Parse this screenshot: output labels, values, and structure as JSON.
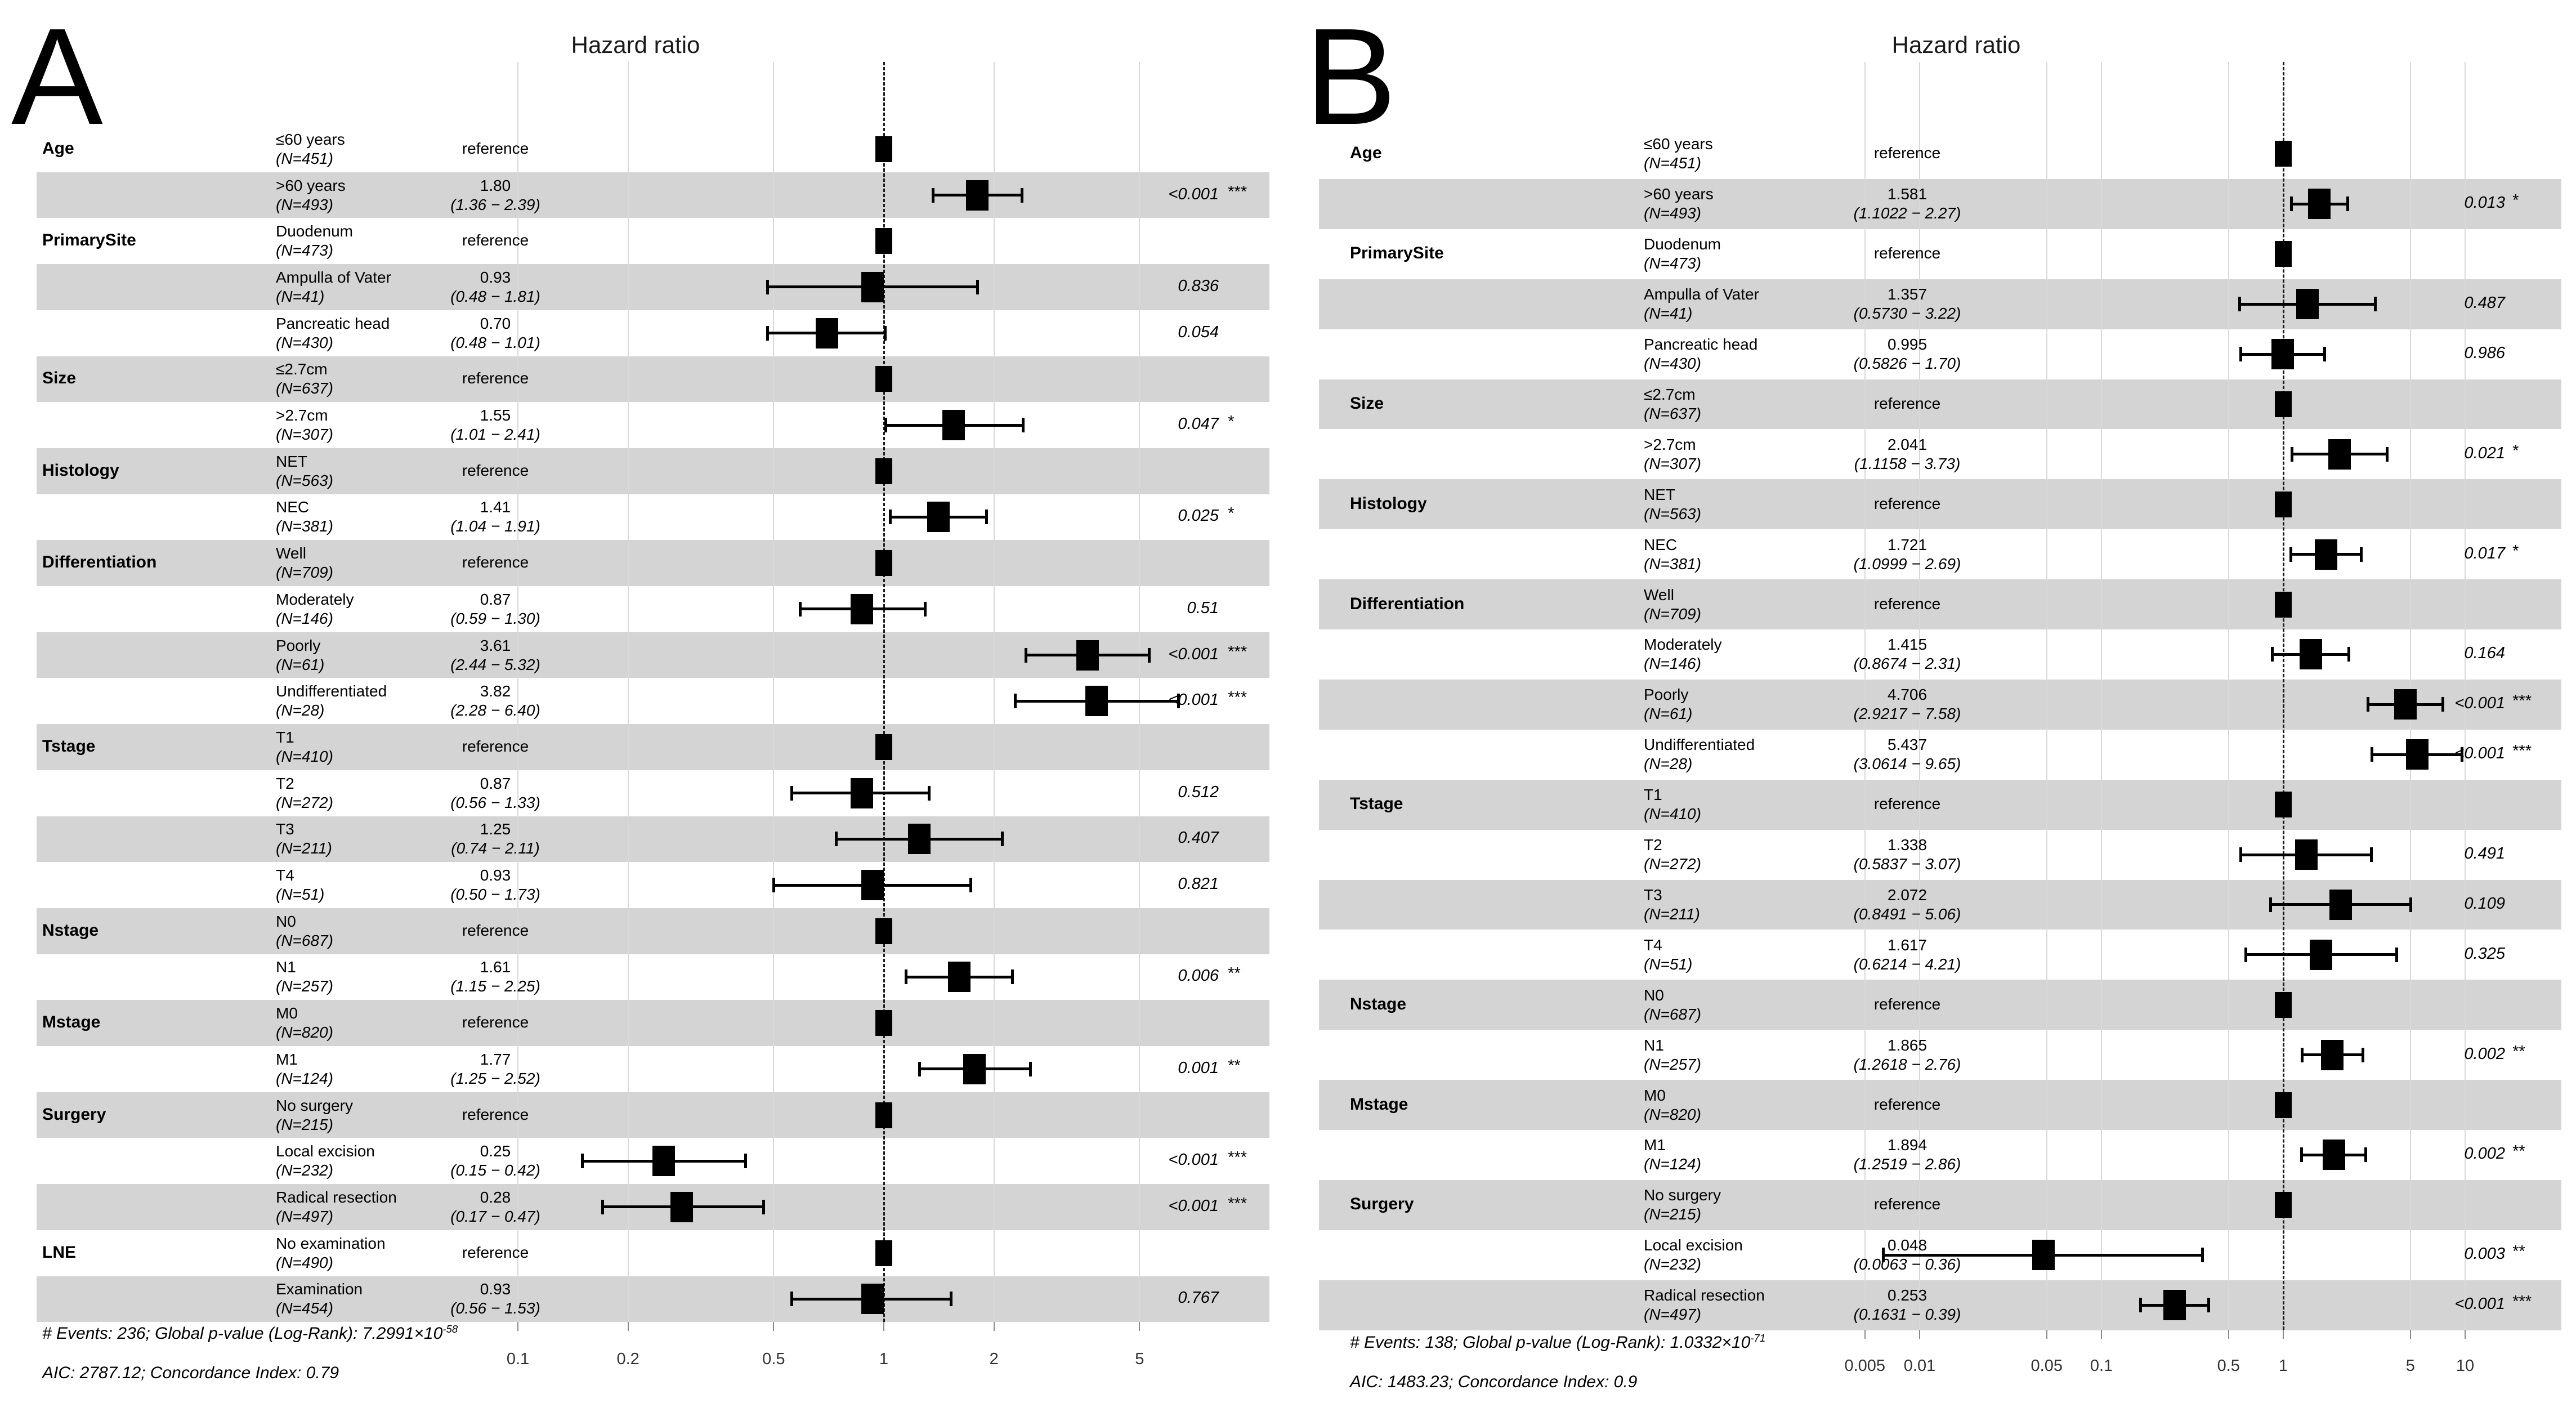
{
  "colors": {
    "row_band": "#d4d4d4",
    "grid_line": "#d9d9d9",
    "marker": "#000000",
    "reference_line": "#1a1a1a"
  },
  "chart_data": [
    {
      "type": "scatter",
      "variant": "forest-plot",
      "panel_label": "A",
      "title": "Hazard ratio",
      "xscale": "log",
      "xlabel": "",
      "xtick_labels": [
        "0.1",
        "0.2",
        "0.5",
        "1",
        "2",
        "5"
      ],
      "xtick_values": [
        0.1,
        0.2,
        0.5,
        1,
        2,
        5
      ],
      "xlim": [
        0.07,
        8
      ],
      "grid": "on",
      "footnote1": "# Events: 236; Global p-value (Log-Rank): 7.2991×10",
      "footnote1_sup": "-58",
      "footnote2": "AIC: 2787.12; Concordance Index: 0.79",
      "rows": [
        {
          "variable": "Age",
          "level": "≤60 years",
          "n": "(N=451)",
          "est": "reference",
          "reference": true
        },
        {
          "variable": "",
          "level": ">60 years",
          "n": "(N=493)",
          "est": "1.80",
          "ci": "(1.36 − 2.39)",
          "hr": 1.8,
          "lo": 1.36,
          "hi": 2.39,
          "p": "<0.001",
          "stars": "***"
        },
        {
          "variable": "PrimarySite",
          "level": "Duodenum",
          "n": "(N=473)",
          "est": "reference",
          "reference": true
        },
        {
          "variable": "",
          "level": "Ampulla of Vater",
          "n": "(N=41)",
          "est": "0.93",
          "ci": "(0.48 − 1.81)",
          "hr": 0.93,
          "lo": 0.48,
          "hi": 1.81,
          "p": "0.836",
          "stars": ""
        },
        {
          "variable": "",
          "level": "Pancreatic head",
          "n": "(N=430)",
          "est": "0.70",
          "ci": "(0.48 − 1.01)",
          "hr": 0.7,
          "lo": 0.48,
          "hi": 1.01,
          "p": "0.054",
          "stars": ""
        },
        {
          "variable": "Size",
          "level": "≤2.7cm",
          "n": "(N=637)",
          "est": "reference",
          "reference": true
        },
        {
          "variable": "",
          "level": ">2.7cm",
          "n": "(N=307)",
          "est": "1.55",
          "ci": "(1.01 − 2.41)",
          "hr": 1.55,
          "lo": 1.01,
          "hi": 2.41,
          "p": "0.047",
          "stars": "*"
        },
        {
          "variable": "Histology",
          "level": "NET",
          "n": "(N=563)",
          "est": "reference",
          "reference": true
        },
        {
          "variable": "",
          "level": "NEC",
          "n": "(N=381)",
          "est": "1.41",
          "ci": "(1.04 − 1.91)",
          "hr": 1.41,
          "lo": 1.04,
          "hi": 1.91,
          "p": "0.025",
          "stars": "*"
        },
        {
          "variable": "Differentiation",
          "level": "Well",
          "n": "(N=709)",
          "est": "reference",
          "reference": true
        },
        {
          "variable": "",
          "level": "Moderately",
          "n": "(N=146)",
          "est": "0.87",
          "ci": "(0.59 − 1.30)",
          "hr": 0.87,
          "lo": 0.59,
          "hi": 1.3,
          "p": "0.51",
          "stars": ""
        },
        {
          "variable": "",
          "level": "Poorly",
          "n": "(N=61)",
          "est": "3.61",
          "ci": "(2.44 − 5.32)",
          "hr": 3.61,
          "lo": 2.44,
          "hi": 5.32,
          "p": "<0.001",
          "stars": "***"
        },
        {
          "variable": "",
          "level": "Undifferentiated",
          "n": "(N=28)",
          "est": "3.82",
          "ci": "(2.28 − 6.40)",
          "hr": 3.82,
          "lo": 2.28,
          "hi": 6.4,
          "p": "<0.001",
          "stars": "***"
        },
        {
          "variable": "Tstage",
          "level": "T1",
          "n": "(N=410)",
          "est": "reference",
          "reference": true
        },
        {
          "variable": "",
          "level": "T2",
          "n": "(N=272)",
          "est": "0.87",
          "ci": "(0.56 − 1.33)",
          "hr": 0.87,
          "lo": 0.56,
          "hi": 1.33,
          "p": "0.512",
          "stars": ""
        },
        {
          "variable": "",
          "level": "T3",
          "n": "(N=211)",
          "est": "1.25",
          "ci": "(0.74 − 2.11)",
          "hr": 1.25,
          "lo": 0.74,
          "hi": 2.11,
          "p": "0.407",
          "stars": ""
        },
        {
          "variable": "",
          "level": "T4",
          "n": "(N=51)",
          "est": "0.93",
          "ci": "(0.50 − 1.73)",
          "hr": 0.93,
          "lo": 0.5,
          "hi": 1.73,
          "p": "0.821",
          "stars": ""
        },
        {
          "variable": "Nstage",
          "level": "N0",
          "n": "(N=687)",
          "est": "reference",
          "reference": true
        },
        {
          "variable": "",
          "level": "N1",
          "n": "(N=257)",
          "est": "1.61",
          "ci": "(1.15 − 2.25)",
          "hr": 1.61,
          "lo": 1.15,
          "hi": 2.25,
          "p": "0.006",
          "stars": "**"
        },
        {
          "variable": "Mstage",
          "level": "M0",
          "n": "(N=820)",
          "est": "reference",
          "reference": true
        },
        {
          "variable": "",
          "level": "M1",
          "n": "(N=124)",
          "est": "1.77",
          "ci": "(1.25 − 2.52)",
          "hr": 1.77,
          "lo": 1.25,
          "hi": 2.52,
          "p": "0.001",
          "stars": "**"
        },
        {
          "variable": "Surgery",
          "level": "No surgery",
          "n": "(N=215)",
          "est": "reference",
          "reference": true
        },
        {
          "variable": "",
          "level": "Local excision",
          "n": "(N=232)",
          "est": "0.25",
          "ci": "(0.15 − 0.42)",
          "hr": 0.25,
          "lo": 0.15,
          "hi": 0.42,
          "p": "<0.001",
          "stars": "***"
        },
        {
          "variable": "",
          "level": "Radical resection",
          "n": "(N=497)",
          "est": "0.28",
          "ci": "(0.17 − 0.47)",
          "hr": 0.28,
          "lo": 0.17,
          "hi": 0.47,
          "p": "<0.001",
          "stars": "***"
        },
        {
          "variable": "LNE",
          "level": "No examination",
          "n": "(N=490)",
          "est": "reference",
          "reference": true
        },
        {
          "variable": "",
          "level": "Examination",
          "n": "(N=454)",
          "est": "0.93",
          "ci": "(0.56 − 1.53)",
          "hr": 0.93,
          "lo": 0.56,
          "hi": 1.53,
          "p": "0.767",
          "stars": ""
        }
      ]
    },
    {
      "type": "scatter",
      "variant": "forest-plot",
      "panel_label": "B",
      "title": "Hazard ratio",
      "xscale": "log",
      "xlabel": "",
      "xtick_labels": [
        "0.005",
        "0.01",
        "0.05",
        "0.1",
        "0.5",
        "1",
        "5",
        "10"
      ],
      "xtick_values": [
        0.005,
        0.01,
        0.05,
        0.1,
        0.5,
        1,
        5,
        10
      ],
      "xlim": [
        0.004,
        12
      ],
      "grid": "on",
      "footnote1": "# Events: 138; Global p-value (Log-Rank): 1.0332×10",
      "footnote1_sup": "-71",
      "footnote2": "AIC: 1483.23; Concordance Index: 0.9",
      "rows": [
        {
          "variable": "Age",
          "level": "≤60 years",
          "n": "(N=451)",
          "est": "reference",
          "reference": true
        },
        {
          "variable": "",
          "level": ">60 years",
          "n": "(N=493)",
          "est": "1.581",
          "ci": "(1.1022 − 2.27)",
          "hr": 1.581,
          "lo": 1.1022,
          "hi": 2.27,
          "p": "0.013",
          "stars": "*"
        },
        {
          "variable": "PrimarySite",
          "level": "Duodenum",
          "n": "(N=473)",
          "est": "reference",
          "reference": true
        },
        {
          "variable": "",
          "level": "Ampulla of Vater",
          "n": "(N=41)",
          "est": "1.357",
          "ci": "(0.5730 − 3.22)",
          "hr": 1.357,
          "lo": 0.573,
          "hi": 3.22,
          "p": "0.487",
          "stars": ""
        },
        {
          "variable": "",
          "level": "Pancreatic head",
          "n": "(N=430)",
          "est": "0.995",
          "ci": "(0.5826 − 1.70)",
          "hr": 0.995,
          "lo": 0.5826,
          "hi": 1.7,
          "p": "0.986",
          "stars": ""
        },
        {
          "variable": "Size",
          "level": "≤2.7cm",
          "n": "(N=637)",
          "est": "reference",
          "reference": true
        },
        {
          "variable": "",
          "level": ">2.7cm",
          "n": "(N=307)",
          "est": "2.041",
          "ci": "(1.1158 − 3.73)",
          "hr": 2.041,
          "lo": 1.1158,
          "hi": 3.73,
          "p": "0.021",
          "stars": "*"
        },
        {
          "variable": "Histology",
          "level": "NET",
          "n": "(N=563)",
          "est": "reference",
          "reference": true
        },
        {
          "variable": "",
          "level": "NEC",
          "n": "(N=381)",
          "est": "1.721",
          "ci": "(1.0999 − 2.69)",
          "hr": 1.721,
          "lo": 1.0999,
          "hi": 2.69,
          "p": "0.017",
          "stars": "*"
        },
        {
          "variable": "Differentiation",
          "level": "Well",
          "n": "(N=709)",
          "est": "reference",
          "reference": true
        },
        {
          "variable": "",
          "level": "Moderately",
          "n": "(N=146)",
          "est": "1.415",
          "ci": "(0.8674 − 2.31)",
          "hr": 1.415,
          "lo": 0.8674,
          "hi": 2.31,
          "p": "0.164",
          "stars": ""
        },
        {
          "variable": "",
          "level": "Poorly",
          "n": "(N=61)",
          "est": "4.706",
          "ci": "(2.9217 − 7.58)",
          "hr": 4.706,
          "lo": 2.9217,
          "hi": 7.58,
          "p": "<0.001",
          "stars": "***"
        },
        {
          "variable": "",
          "level": "Undifferentiated",
          "n": "(N=28)",
          "est": "5.437",
          "ci": "(3.0614 − 9.65)",
          "hr": 5.437,
          "lo": 3.0614,
          "hi": 9.65,
          "p": "<0.001",
          "stars": "***"
        },
        {
          "variable": "Tstage",
          "level": "T1",
          "n": "(N=410)",
          "est": "reference",
          "reference": true
        },
        {
          "variable": "",
          "level": "T2",
          "n": "(N=272)",
          "est": "1.338",
          "ci": "(0.5837 − 3.07)",
          "hr": 1.338,
          "lo": 0.5837,
          "hi": 3.07,
          "p": "0.491",
          "stars": ""
        },
        {
          "variable": "",
          "level": "T3",
          "n": "(N=211)",
          "est": "2.072",
          "ci": "(0.8491 − 5.06)",
          "hr": 2.072,
          "lo": 0.8491,
          "hi": 5.06,
          "p": "0.109",
          "stars": ""
        },
        {
          "variable": "",
          "level": "T4",
          "n": "(N=51)",
          "est": "1.617",
          "ci": "(0.6214 − 4.21)",
          "hr": 1.617,
          "lo": 0.6214,
          "hi": 4.21,
          "p": "0.325",
          "stars": ""
        },
        {
          "variable": "Nstage",
          "level": "N0",
          "n": "(N=687)",
          "est": "reference",
          "reference": true
        },
        {
          "variable": "",
          "level": "N1",
          "n": "(N=257)",
          "est": "1.865",
          "ci": "(1.2618 − 2.76)",
          "hr": 1.865,
          "lo": 1.2618,
          "hi": 2.76,
          "p": "0.002",
          "stars": "**"
        },
        {
          "variable": "Mstage",
          "level": "M0",
          "n": "(N=820)",
          "est": "reference",
          "reference": true
        },
        {
          "variable": "",
          "level": "M1",
          "n": "(N=124)",
          "est": "1.894",
          "ci": "(1.2519 − 2.86)",
          "hr": 1.894,
          "lo": 1.2519,
          "hi": 2.86,
          "p": "0.002",
          "stars": "**"
        },
        {
          "variable": "Surgery",
          "level": "No surgery",
          "n": "(N=215)",
          "est": "reference",
          "reference": true
        },
        {
          "variable": "",
          "level": "Local excision",
          "n": "(N=232)",
          "est": "0.048",
          "ci": "(0.0063 − 0.36)",
          "hr": 0.048,
          "lo": 0.0063,
          "hi": 0.36,
          "p": "0.003",
          "stars": "**"
        },
        {
          "variable": "",
          "level": "Radical resection",
          "n": "(N=497)",
          "est": "0.253",
          "ci": "(0.1631 − 0.39)",
          "hr": 0.253,
          "lo": 0.1631,
          "hi": 0.39,
          "p": "<0.001",
          "stars": "***"
        }
      ]
    }
  ]
}
